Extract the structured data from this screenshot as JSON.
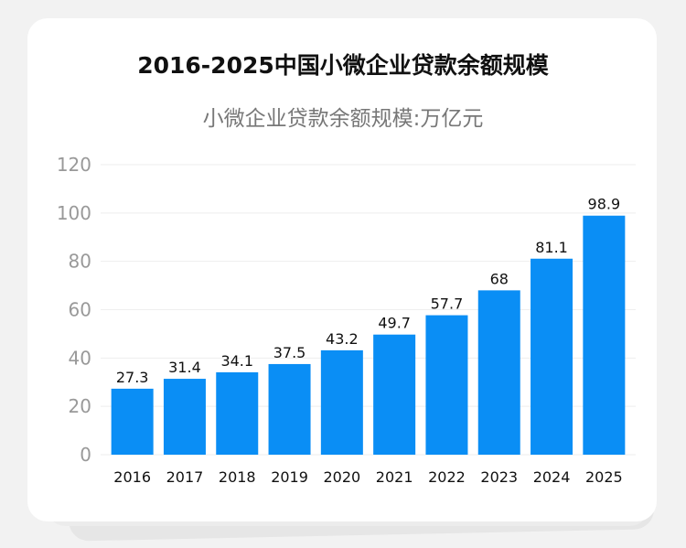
{
  "title": "2016-2025中国小微企业贷款余额规模",
  "subtitle": "小微企业贷款余额规模:万亿元",
  "chart_data": {
    "type": "bar",
    "title": "2016-2025中国小微企业贷款余额规模",
    "subtitle": "小微企业贷款余额规模:万亿元",
    "categories": [
      "2016",
      "2017",
      "2018",
      "2019",
      "2020",
      "2021",
      "2022",
      "2023",
      "2024",
      "2025"
    ],
    "values": [
      27.3,
      31.4,
      34.1,
      37.5,
      43.2,
      49.7,
      57.7,
      68,
      81.1,
      98.9
    ],
    "data_labels": [
      "27.3",
      "31.4",
      "34.1",
      "37.5",
      "43.2",
      "49.7",
      "57.7",
      "68",
      "81.1",
      "98.9"
    ],
    "ylim": [
      0,
      120
    ],
    "yticks": [
      "0",
      "20",
      "40",
      "60",
      "80",
      "100",
      "120"
    ],
    "grid": true,
    "legend": "none",
    "bar_color": "#0a8ef5"
  }
}
